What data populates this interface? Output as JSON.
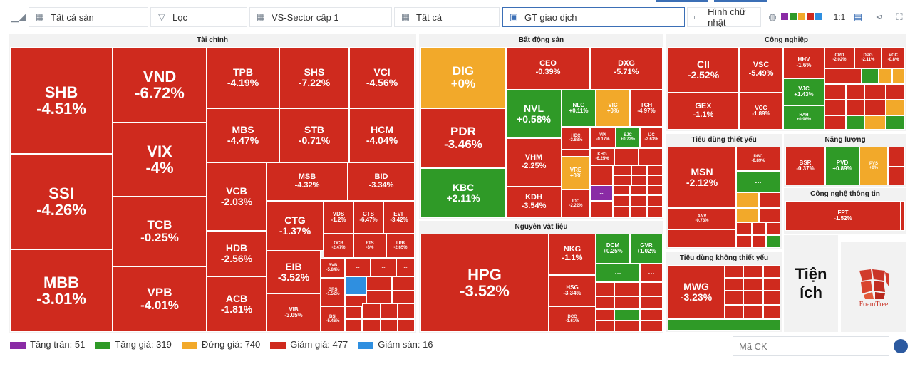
{
  "toolbar": {
    "exchange": "Tất cả sàn",
    "filter": "Lọc",
    "sector_level": "VS-Sector cấp 1",
    "all": "Tất cả",
    "metric": "GT giao dịch",
    "shape": "Hình chữ nhật",
    "ratio": "1:1",
    "palette": [
      "#8a2ba5",
      "#2f9a27",
      "#f2a92a",
      "#cf2a1e",
      "#2f8fe0"
    ]
  },
  "sectors": {
    "taichinh": "Tài chính",
    "bds": "Bất động sản",
    "congnghiep": "Công nghiệp",
    "nvl": "Nguyên vật liệu",
    "tdty": "Tiêu dùng thiết yếu",
    "nangluong": "Năng lượng",
    "cntt": "Công nghệ thông tin",
    "tdkty": "Tiêu dùng không thiết yếu",
    "more": "..."
  },
  "tiles": [
    {
      "s": "SHB",
      "v": "-4.51%"
    },
    {
      "s": "SSI",
      "v": "-4.26%"
    },
    {
      "s": "MBB",
      "v": "-3.01%"
    },
    {
      "s": "VND",
      "v": "-6.72%"
    },
    {
      "s": "VIX",
      "v": "-4%"
    },
    {
      "s": "TCB",
      "v": "-0.25%"
    },
    {
      "s": "VPB",
      "v": "-4.01%"
    },
    {
      "s": "TPB",
      "v": "-4.19%"
    },
    {
      "s": "SHS",
      "v": "-7.22%"
    },
    {
      "s": "VCI",
      "v": "-4.56%"
    },
    {
      "s": "MBS",
      "v": "-4.47%"
    },
    {
      "s": "STB",
      "v": "-0.71%"
    },
    {
      "s": "HCM",
      "v": "-4.04%"
    },
    {
      "s": "VCB",
      "v": "-2.03%"
    },
    {
      "s": "MSB",
      "v": "-4.32%"
    },
    {
      "s": "BID",
      "v": "-3.34%"
    },
    {
      "s": "HDB",
      "v": "-2.56%"
    },
    {
      "s": "CTG",
      "v": "-1.37%"
    },
    {
      "s": "VDS",
      "v": "-1.2%"
    },
    {
      "s": "CTS",
      "v": "-6.47%"
    },
    {
      "s": "EVF",
      "v": "-3.42%"
    },
    {
      "s": "OCB",
      "v": "-2.47%"
    },
    {
      "s": "FTS",
      "v": "-3%"
    },
    {
      "s": "LPB",
      "v": "-2.65%"
    },
    {
      "s": "ACB",
      "v": "-1.81%"
    },
    {
      "s": "EIB",
      "v": "-3.52%"
    },
    {
      "s": "BVB",
      "v": "-5.84%"
    },
    {
      "s": "ORS",
      "v": "-1.52%"
    },
    {
      "s": "VIB",
      "v": "-3.05%"
    },
    {
      "s": "BSI",
      "v": "-5.46%"
    },
    {
      "s": "DIG",
      "v": "+0%"
    },
    {
      "s": "PDR",
      "v": "-3.46%"
    },
    {
      "s": "KBC",
      "v": "+2.11%"
    },
    {
      "s": "CEO",
      "v": "-0.39%"
    },
    {
      "s": "DXG",
      "v": "-5.71%"
    },
    {
      "s": "NVL",
      "v": "+0.58%"
    },
    {
      "s": "NLG",
      "v": "+0.11%"
    },
    {
      "s": "VIC",
      "v": "+0%"
    },
    {
      "s": "TCH",
      "v": "-4.97%"
    },
    {
      "s": "HDC",
      "v": "-3.88%"
    },
    {
      "s": "VPI",
      "v": "-0.17%"
    },
    {
      "s": "SJC",
      "v": "+0.72%"
    },
    {
      "s": "IJC",
      "v": "-2.63%"
    },
    {
      "s": "VHM",
      "v": "-2.25%"
    },
    {
      "s": "KHG",
      "v": "-6.25%"
    },
    {
      "s": "VRE",
      "v": "+0%"
    },
    {
      "s": "KDH",
      "v": "-3.54%"
    },
    {
      "s": "IDC",
      "v": "-2.22%"
    },
    {
      "s": "CII",
      "v": "-2.52%"
    },
    {
      "s": "VSC",
      "v": "-5.49%"
    },
    {
      "s": "HHV",
      "v": "-1.6%"
    },
    {
      "s": "CRD",
      "v": "-2.02%"
    },
    {
      "s": "DPG",
      "v": "-2.11%"
    },
    {
      "s": "VCC",
      "v": "-0.8%"
    },
    {
      "s": "VJC",
      "v": "+1.43%"
    },
    {
      "s": "HAH",
      "v": "+0.98%"
    },
    {
      "s": "GEX",
      "v": "-1.1%"
    },
    {
      "s": "VCG",
      "v": "-1.89%"
    },
    {
      "s": "HPG",
      "v": "-3.52%"
    },
    {
      "s": "NKG",
      "v": "-1.1%"
    },
    {
      "s": "DCM",
      "v": "+0.25%"
    },
    {
      "s": "GVR",
      "v": "+1.02%"
    },
    {
      "s": "HSG",
      "v": "-3.34%"
    },
    {
      "s": "DCC",
      "v": "-1.61%"
    },
    {
      "s": "MSN",
      "v": "-2.12%"
    },
    {
      "s": "DBC",
      "v": "-0.89%"
    },
    {
      "s": "ANV",
      "v": "-0.73%"
    },
    {
      "s": "BSR",
      "v": "-0.37%"
    },
    {
      "s": "PVD",
      "v": "+0.89%"
    },
    {
      "s": "PVS",
      "v": "+0%"
    },
    {
      "s": "FPT",
      "v": "-1.52%"
    },
    {
      "s": "MWG",
      "v": "-3.23%"
    }
  ],
  "utility": {
    "title_line1": "Tiện",
    "title_line2": "ích",
    "brand": "FoamTree"
  },
  "legend": [
    {
      "label": "Tăng trần: 51",
      "color": "#8a2ba5"
    },
    {
      "label": "Tăng giá: 319",
      "color": "#2f9a27"
    },
    {
      "label": "Đứng giá: 740",
      "color": "#f2a92a"
    },
    {
      "label": "Giảm giá: 477",
      "color": "#cf2a1e"
    },
    {
      "label": "Giảm sàn: 16",
      "color": "#2f8fe0"
    }
  ],
  "search": {
    "placeholder": "Mã CK"
  }
}
